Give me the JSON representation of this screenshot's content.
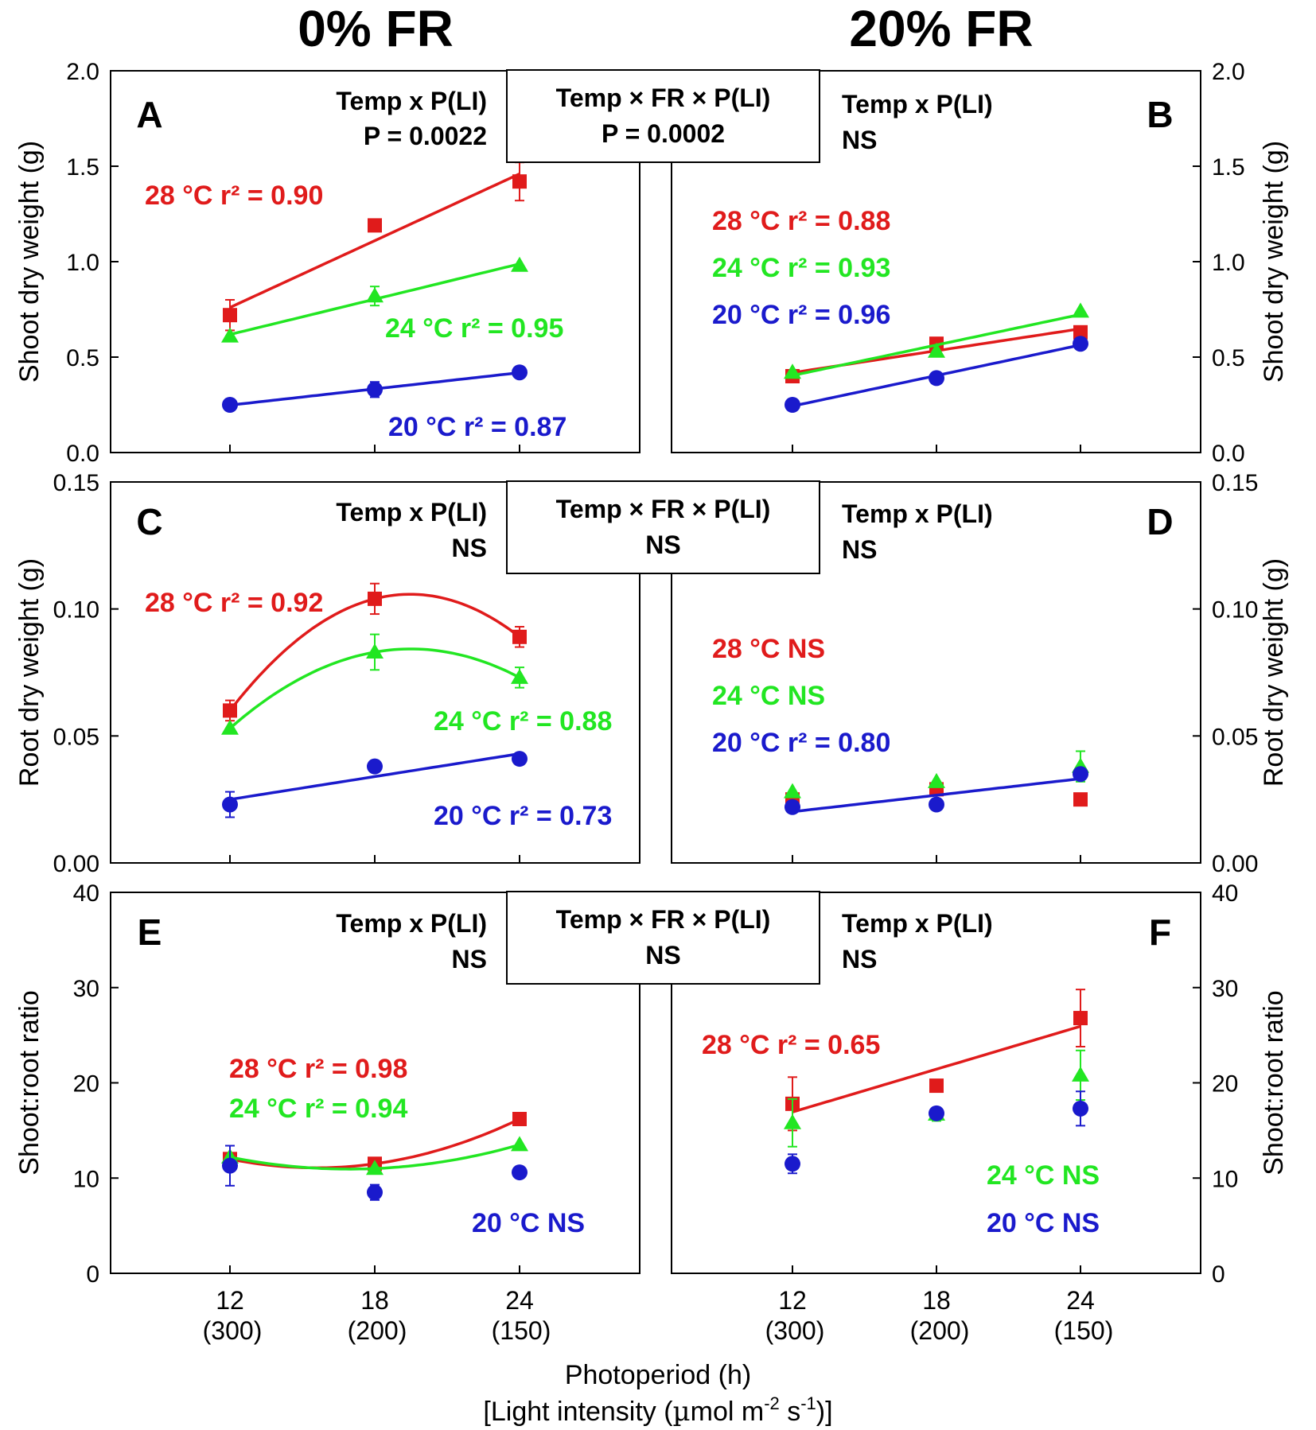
{
  "columns": {
    "left": "0% FR",
    "right": "20% FR"
  },
  "xaxis": {
    "label_line1": "Photoperiod (h)",
    "label_line2_pre": "[Light intensity (",
    "label_line2_mu": "µ",
    "label_line2_mid": "mol m",
    "label_line2_sup1": "-2",
    "label_line2_s": " s",
    "label_line2_sup2": "-1",
    "label_line2_post": ")]",
    "ticks_top": [
      "12",
      "18",
      "24"
    ],
    "ticks_bottom": [
      "(300)",
      "(200)",
      "(150)"
    ]
  },
  "colors": {
    "c28": "#e01b1b",
    "c24": "#22e622",
    "c20": "#1a1acc"
  },
  "chart_data": [
    {
      "panel": "A",
      "type": "scatter",
      "fr": "0% FR",
      "ylabel": "Shoot dry weight (g)",
      "ylim": [
        0,
        2.0
      ],
      "yticks": [
        "0.0",
        "0.5",
        "1.0",
        "1.5",
        "2.0"
      ],
      "x": [
        12,
        18,
        24
      ],
      "stats": [
        "Temp x P(LI)",
        "P = 0.0022"
      ],
      "series": [
        {
          "name": "28 °C",
          "color": "#e01b1b",
          "marker": "square",
          "values": [
            0.72,
            1.19,
            1.42
          ],
          "errors": [
            0.08,
            0.02,
            0.1
          ],
          "fit": "linear",
          "label_temp": "28 °C",
          "label_stat": "r² = 0.90"
        },
        {
          "name": "24 °C",
          "color": "#22e622",
          "marker": "triangle",
          "values": [
            0.61,
            0.82,
            0.98
          ],
          "errors": [
            0.0,
            0.05,
            0.0
          ],
          "fit": "linear",
          "label_temp": "24 °C",
          "label_stat": "r² = 0.95"
        },
        {
          "name": "20 °C",
          "color": "#1a1acc",
          "marker": "circle",
          "values": [
            0.25,
            0.33,
            0.42
          ],
          "errors": [
            0.0,
            0.04,
            0.0
          ],
          "fit": "linear",
          "label_temp": "20 °C",
          "label_stat": "r² = 0.87"
        }
      ]
    },
    {
      "panel": "B",
      "type": "scatter",
      "fr": "20% FR",
      "ylabel": "Shoot dry weight (g)",
      "ylim": [
        0,
        2.0
      ],
      "yticks": [
        "0.0",
        "0.5",
        "1.0",
        "1.5",
        "2.0"
      ],
      "x": [
        12,
        18,
        24
      ],
      "stats": [
        "Temp x P(LI)",
        "NS"
      ],
      "series": [
        {
          "name": "28 °C",
          "color": "#e01b1b",
          "marker": "square",
          "values": [
            0.4,
            0.57,
            0.63
          ],
          "errors": [
            0.0,
            0.0,
            0.0
          ],
          "fit": "linear",
          "label_temp": "28 °C",
          "label_stat": "r² = 0.88"
        },
        {
          "name": "24 °C",
          "color": "#22e622",
          "marker": "triangle",
          "values": [
            0.42,
            0.53,
            0.74
          ],
          "errors": [
            0.0,
            0.0,
            0.0
          ],
          "fit": "linear",
          "label_temp": "24 °C",
          "label_stat": "r² = 0.93"
        },
        {
          "name": "20 °C",
          "color": "#1a1acc",
          "marker": "circle",
          "values": [
            0.25,
            0.39,
            0.57
          ],
          "errors": [
            0.0,
            0.0,
            0.0
          ],
          "fit": "linear",
          "label_temp": "20 °C",
          "label_stat": "r² = 0.96"
        }
      ]
    },
    {
      "panel": "C",
      "type": "scatter",
      "fr": "0% FR",
      "ylabel": "Root dry weight (g)",
      "ylim": [
        0,
        0.15
      ],
      "yticks": [
        "0.00",
        "0.05",
        "0.10",
        "0.15"
      ],
      "x": [
        12,
        18,
        24
      ],
      "stats": [
        "Temp x P(LI)",
        "NS"
      ],
      "series": [
        {
          "name": "28 °C",
          "color": "#e01b1b",
          "marker": "square",
          "values": [
            0.06,
            0.104,
            0.089
          ],
          "errors": [
            0.004,
            0.006,
            0.004
          ],
          "fit": "quadratic",
          "label_temp": "28 °C",
          "label_stat": "r² = 0.92"
        },
        {
          "name": "24 °C",
          "color": "#22e622",
          "marker": "triangle",
          "values": [
            0.053,
            0.083,
            0.073
          ],
          "errors": [
            0.0,
            0.007,
            0.004
          ],
          "fit": "quadratic",
          "label_temp": "24 °C",
          "label_stat": "r² = 0.88"
        },
        {
          "name": "20 °C",
          "color": "#1a1acc",
          "marker": "circle",
          "values": [
            0.023,
            0.038,
            0.041
          ],
          "errors": [
            0.005,
            0.0,
            0.0
          ],
          "fit": "linear",
          "label_temp": "20 °C",
          "label_stat": "r² = 0.73"
        }
      ]
    },
    {
      "panel": "D",
      "type": "scatter",
      "fr": "20% FR",
      "ylabel": "Root dry weight (g)",
      "ylim": [
        0,
        0.15
      ],
      "yticks": [
        "0.00",
        "0.05",
        "0.10",
        "0.15"
      ],
      "x": [
        12,
        18,
        24
      ],
      "stats": [
        "Temp x P(LI)",
        "NS"
      ],
      "series": [
        {
          "name": "28 °C",
          "color": "#e01b1b",
          "marker": "square",
          "values": [
            0.025,
            0.029,
            0.025
          ],
          "errors": [
            0.0,
            0.0,
            0.0
          ],
          "fit": "none",
          "label_temp": "28 °C",
          "label_stat": "NS"
        },
        {
          "name": "24 °C",
          "color": "#22e622",
          "marker": "triangle",
          "values": [
            0.028,
            0.032,
            0.038
          ],
          "errors": [
            0.0,
            0.0,
            0.006
          ],
          "fit": "none",
          "label_temp": "24 °C",
          "label_stat": "NS"
        },
        {
          "name": "20 °C",
          "color": "#1a1acc",
          "marker": "circle",
          "values": [
            0.022,
            0.023,
            0.035
          ],
          "errors": [
            0.0,
            0.0,
            0.0
          ],
          "fit": "linear",
          "label_temp": "20 °C",
          "label_stat": "r² = 0.80"
        }
      ]
    },
    {
      "panel": "E",
      "type": "scatter",
      "fr": "0% FR",
      "ylabel": "Shoot:root ratio",
      "ylim": [
        0,
        40
      ],
      "yticks": [
        "0",
        "10",
        "20",
        "30",
        "40"
      ],
      "x": [
        12,
        18,
        24
      ],
      "stats": [
        "Temp x P(LI)",
        "NS"
      ],
      "series": [
        {
          "name": "28 °C",
          "color": "#e01b1b",
          "marker": "square",
          "values": [
            12.0,
            11.5,
            16.2
          ],
          "errors": [
            0.0,
            0.0,
            0.0
          ],
          "fit": "quadratic",
          "label_temp": "28 °C",
          "label_stat": "r² = 0.98"
        },
        {
          "name": "24 °C",
          "color": "#22e622",
          "marker": "triangle",
          "values": [
            12.2,
            11.0,
            13.5
          ],
          "errors": [
            0.0,
            0.0,
            0.0
          ],
          "fit": "quadratic",
          "label_temp": "24 °C",
          "label_stat": "r² = 0.94"
        },
        {
          "name": "20 °C",
          "color": "#1a1acc",
          "marker": "circle",
          "values": [
            11.3,
            8.5,
            10.6
          ],
          "errors": [
            2.1,
            0.8,
            0.0
          ],
          "fit": "none",
          "label_temp": "20 °C",
          "label_stat": "NS"
        }
      ]
    },
    {
      "panel": "F",
      "type": "scatter",
      "fr": "20% FR",
      "ylabel": "Shoot:root ratio",
      "ylim": [
        0,
        40
      ],
      "yticks": [
        "0",
        "10",
        "20",
        "30",
        "40"
      ],
      "x": [
        12,
        18,
        24
      ],
      "stats": [
        "Temp x P(LI)",
        "NS"
      ],
      "series": [
        {
          "name": "28 °C",
          "color": "#e01b1b",
          "marker": "square",
          "values": [
            17.8,
            19.7,
            26.8
          ],
          "errors": [
            2.8,
            0.0,
            3.0
          ],
          "fit": "linear",
          "label_temp": "28 °C",
          "label_stat": "r² = 0.65"
        },
        {
          "name": "24 °C",
          "color": "#22e622",
          "marker": "triangle",
          "values": [
            15.8,
            16.7,
            20.8
          ],
          "errors": [
            2.5,
            0.7,
            2.6
          ],
          "fit": "none",
          "label_temp": "24 °C",
          "label_stat": "NS"
        },
        {
          "name": "20 °C",
          "color": "#1a1acc",
          "marker": "circle",
          "values": [
            11.5,
            16.8,
            17.3
          ],
          "errors": [
            1.0,
            0.6,
            1.8
          ],
          "fit": "none",
          "label_temp": "20 °C",
          "label_stat": "NS"
        }
      ]
    }
  ],
  "interaction_boxes": [
    {
      "line1": "Temp × FR × P(LI)",
      "line2": "P = 0.0002"
    },
    {
      "line1": "Temp × FR × P(LI)",
      "line2": "NS"
    },
    {
      "line1": "Temp × FR × P(LI)",
      "line2": "NS"
    }
  ]
}
